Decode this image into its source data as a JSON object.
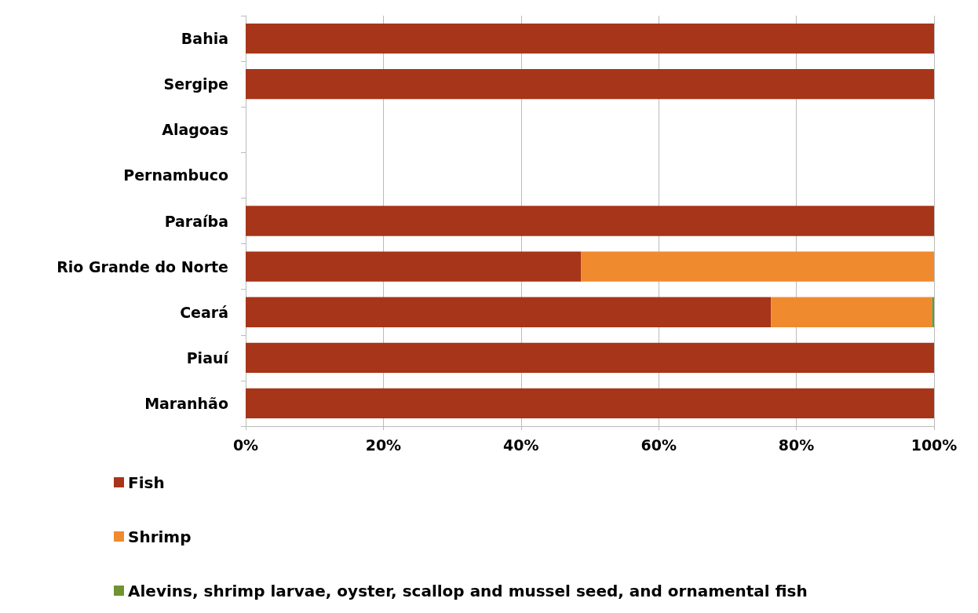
{
  "chart_data": {
    "type": "bar",
    "orientation": "horizontal",
    "stacked": true,
    "categories": [
      "Bahia",
      "Sergipe",
      "Alagoas",
      "Pernambuco",
      "Paraíba",
      "Rio Grande do Norte",
      "Ceará",
      "Piauí",
      "Maranhão"
    ],
    "series": [
      {
        "name": "Fish",
        "color": "#a63519",
        "values": [
          100,
          100,
          null,
          null,
          100,
          48.7,
          76.3,
          100,
          100
        ]
      },
      {
        "name": "Shrimp",
        "color": "#f08a2e",
        "values": [
          null,
          null,
          null,
          null,
          null,
          51.3,
          23.4,
          null,
          null
        ]
      },
      {
        "name": "Alevins, shrimp larvae, oyster, scallop and mussel seed, and ornamental fish",
        "color": "#6f9333",
        "values": [
          null,
          null,
          null,
          null,
          null,
          null,
          0.3,
          null,
          null
        ]
      }
    ],
    "xlim": [
      0,
      100
    ],
    "xticks": [
      {
        "value": 0,
        "label": "0%"
      },
      {
        "value": 20,
        "label": "20%"
      },
      {
        "value": 40,
        "label": "40%"
      },
      {
        "value": 60,
        "label": "60%"
      },
      {
        "value": 80,
        "label": "80%"
      },
      {
        "value": 100,
        "label": "100%"
      }
    ],
    "grid": "x",
    "legend": "bottom left"
  }
}
